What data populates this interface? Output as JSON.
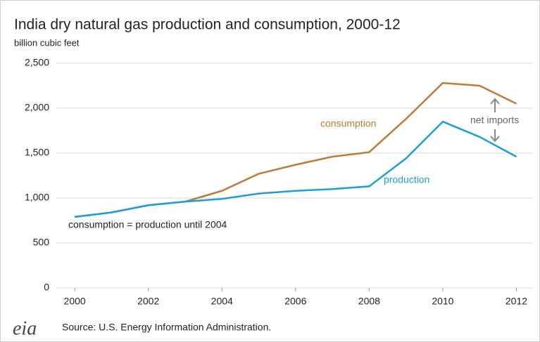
{
  "chart_data": {
    "type": "line",
    "title": "India dry natural gas production and consumption, 2000-12",
    "subtitle": "billion cubic feet",
    "x": [
      2000,
      2001,
      2002,
      2003,
      2004,
      2005,
      2006,
      2007,
      2008,
      2009,
      2010,
      2011,
      2012
    ],
    "series": [
      {
        "name": "consumption",
        "color": "#bd7b37",
        "values": [
          790,
          840,
          920,
          960,
          1080,
          1270,
          1370,
          1460,
          1510,
          1880,
          2280,
          2250,
          2050
        ]
      },
      {
        "name": "production",
        "color": "#1aa0d8",
        "values": [
          790,
          840,
          920,
          960,
          990,
          1050,
          1080,
          1100,
          1130,
          1440,
          1850,
          1680,
          1460
        ]
      }
    ],
    "xlim": [
      1999.5,
      2012.45
    ],
    "xticks": [
      2000,
      2002,
      2004,
      2006,
      2008,
      2010,
      2012
    ],
    "ylim": [
      0,
      2500
    ],
    "yticks": [
      0,
      {
        "value": 500,
        "label": "500"
      },
      {
        "value": 1000,
        "label": "1,000"
      },
      {
        "value": 1500,
        "label": "1,500"
      },
      {
        "value": 2000,
        "label": "2,000"
      },
      {
        "value": 2500,
        "label": "2,500"
      }
    ],
    "grid": true,
    "annotations": [
      "net imports",
      "consumption = production until 2004"
    ],
    "logo": "eia",
    "source": "Source: U.S. Energy Information Administration."
  }
}
